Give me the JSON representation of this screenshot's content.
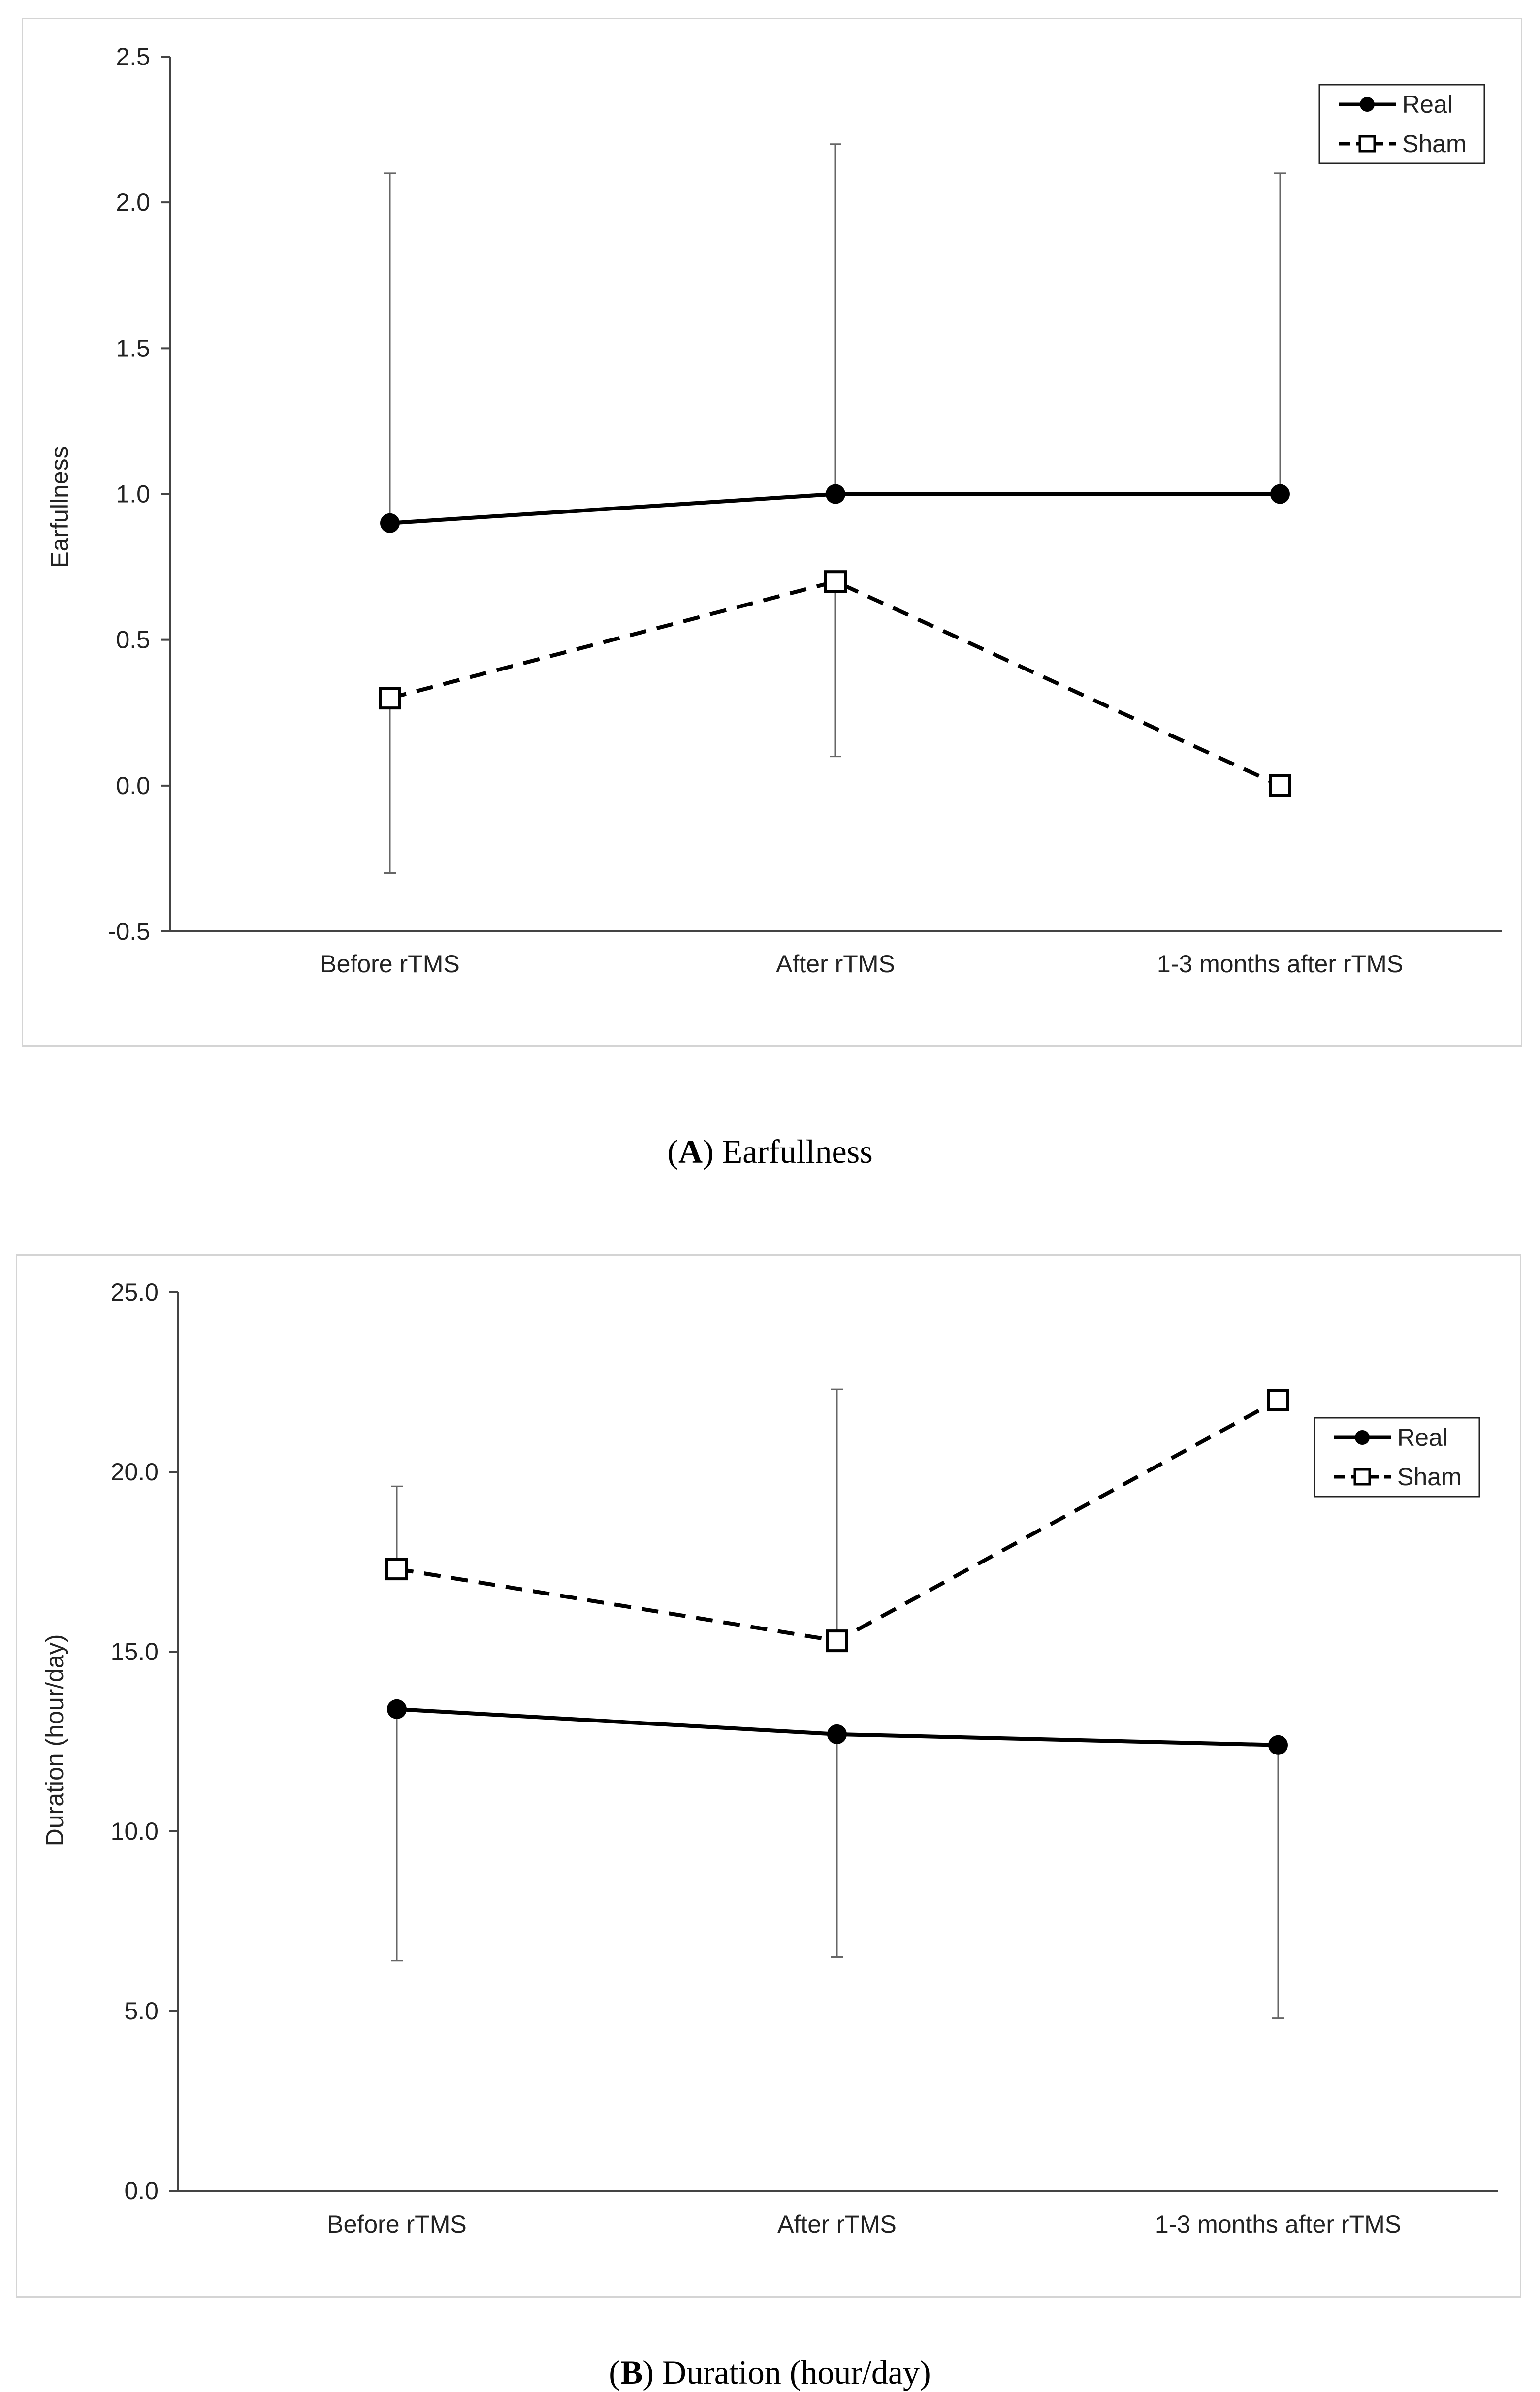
{
  "chart_data": [
    {
      "type": "line",
      "panel_label": "A",
      "caption": "Earfullness",
      "title": "",
      "xlabel": "",
      "ylabel": "Earfullness",
      "categories": [
        "Before rTMS",
        "After rTMS",
        "1-3 months after rTMS"
      ],
      "ylim": [
        -0.5,
        2.5
      ],
      "yticks": [
        -0.5,
        0.0,
        0.5,
        1.0,
        1.5,
        2.0,
        2.5
      ],
      "ytick_labels": [
        "-0.5",
        "0.0",
        "0.5",
        "1.0",
        "1.5",
        "2.0",
        "2.5"
      ],
      "grid": false,
      "legend_position": "top-right",
      "series": [
        {
          "name": "Real",
          "marker": "filled-circle",
          "line": "solid",
          "values": [
            0.9,
            1.0,
            1.0
          ],
          "error_upper": [
            2.1,
            2.2,
            2.1
          ],
          "error_lower": [
            null,
            null,
            null
          ]
        },
        {
          "name": "Sham",
          "marker": "open-square",
          "line": "dashed",
          "values": [
            0.3,
            0.7,
            0.0
          ],
          "error_upper": [
            null,
            null,
            null
          ],
          "error_lower": [
            -0.3,
            0.1,
            null
          ]
        }
      ]
    },
    {
      "type": "line",
      "panel_label": "B",
      "caption": "Duration (hour/day)",
      "title": "",
      "xlabel": "",
      "ylabel": "Duration (hour/day)",
      "categories": [
        "Before rTMS",
        "After rTMS",
        "1-3 months after rTMS"
      ],
      "ylim": [
        0.0,
        25.0
      ],
      "yticks": [
        0.0,
        5.0,
        10.0,
        15.0,
        20.0,
        25.0
      ],
      "ytick_labels": [
        "0.0",
        "5.0",
        "10.0",
        "15.0",
        "20.0",
        "25.0"
      ],
      "grid": false,
      "legend_position": "top-right",
      "series": [
        {
          "name": "Real",
          "marker": "filled-circle",
          "line": "solid",
          "values": [
            13.4,
            12.7,
            12.4
          ],
          "error_upper": [
            null,
            null,
            null
          ],
          "error_lower": [
            6.4,
            6.5,
            4.8
          ]
        },
        {
          "name": "Sham",
          "marker": "open-square",
          "line": "dashed",
          "values": [
            17.3,
            15.3,
            22.0
          ],
          "error_upper": [
            19.6,
            22.3,
            null
          ],
          "error_lower": [
            null,
            null,
            null
          ]
        }
      ]
    }
  ]
}
